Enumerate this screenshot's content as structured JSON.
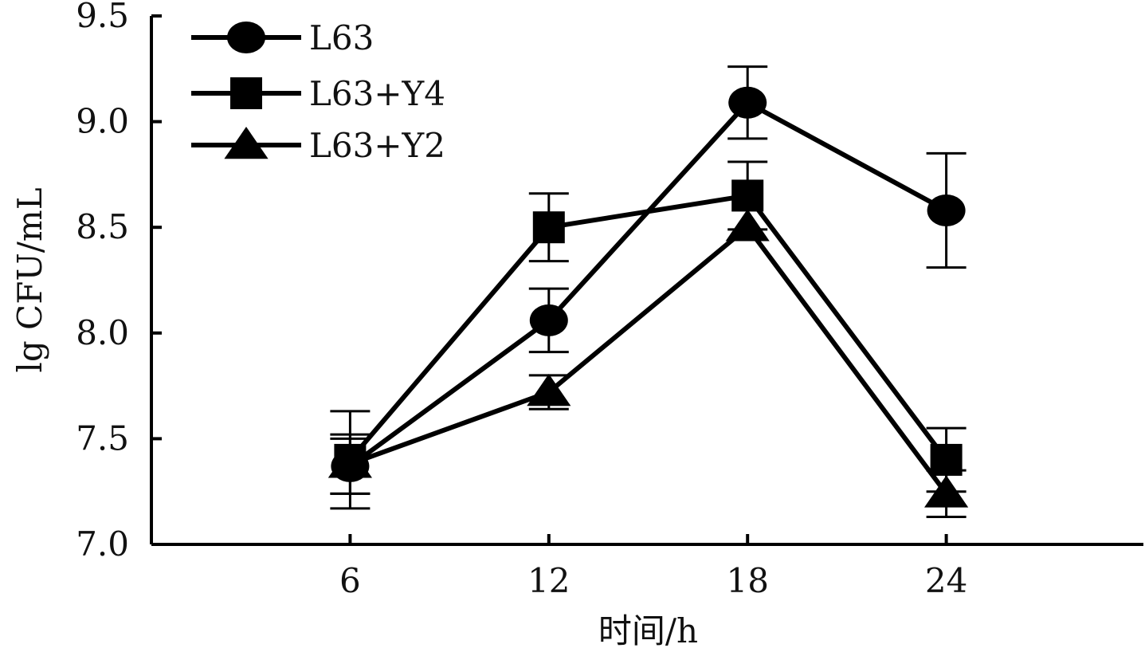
{
  "chart_data": {
    "type": "line",
    "xlabel": "时间/h",
    "ylabel": "lg CFU/mL",
    "x": [
      6,
      12,
      18,
      24
    ],
    "xlim": [
      0,
      30
    ],
    "ylim": [
      7.0,
      9.5
    ],
    "x_ticks": [
      "6",
      "12",
      "18",
      "24"
    ],
    "y_ticks": [
      "7.0",
      "7.5",
      "8.0",
      "8.5",
      "9.0",
      "9.5"
    ],
    "grid": false,
    "legend_position": "top-left",
    "series": [
      {
        "name": "L63",
        "marker": "circle",
        "color": "#000000",
        "values": [
          7.37,
          8.06,
          9.09,
          8.58
        ],
        "error": [
          0.13,
          0.15,
          0.17,
          0.27
        ]
      },
      {
        "name": "L63+Y4",
        "marker": "square",
        "color": "#000000",
        "values": [
          7.4,
          8.5,
          8.65,
          7.4
        ],
        "error": [
          0.23,
          0.16,
          0.16,
          0.15
        ]
      },
      {
        "name": "L63+Y2",
        "marker": "triangle",
        "color": "#000000",
        "values": [
          7.38,
          7.72,
          8.5,
          7.24
        ],
        "error": [
          0.14,
          0.08,
          0.0,
          0.11
        ]
      }
    ]
  }
}
